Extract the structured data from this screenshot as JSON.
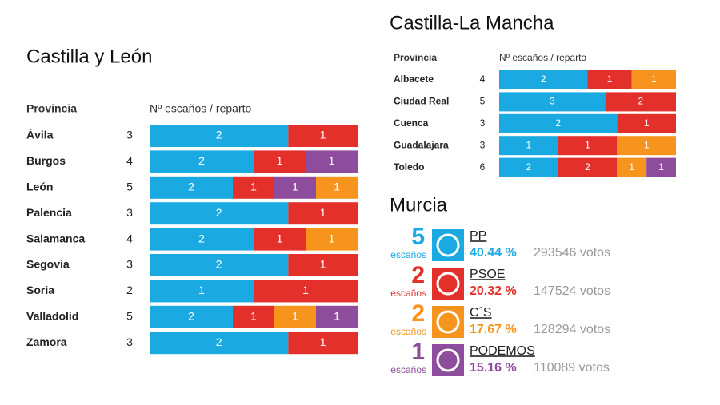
{
  "castilla_leon": {
    "title": "Castilla y León",
    "header": [
      "Provincia",
      "Nº escaños / reparto"
    ],
    "rows": [
      {
        "province": "Ávila",
        "seats": 3,
        "segments": [
          {
            "value": 2,
            "color": "#1aa9e0"
          },
          {
            "value": 1,
            "color": "#e4302a"
          }
        ]
      },
      {
        "province": "Burgos",
        "seats": 4,
        "segments": [
          {
            "value": 2,
            "color": "#1aa9e0"
          },
          {
            "value": 1,
            "color": "#e4302a"
          },
          {
            "value": 1,
            "color": "#8e4d9c"
          }
        ]
      },
      {
        "province": "León",
        "seats": 5,
        "segments": [
          {
            "value": 2,
            "color": "#1aa9e0"
          },
          {
            "value": 1,
            "color": "#e4302a"
          },
          {
            "value": 1,
            "color": "#8e4d9c"
          },
          {
            "value": 1,
            "color": "#f7941d"
          }
        ]
      },
      {
        "province": "Palencia",
        "seats": 3,
        "segments": [
          {
            "value": 2,
            "color": "#1aa9e0"
          },
          {
            "value": 1,
            "color": "#e4302a"
          }
        ]
      },
      {
        "province": "Salamanca",
        "seats": 4,
        "segments": [
          {
            "value": 2,
            "color": "#1aa9e0"
          },
          {
            "value": 1,
            "color": "#e4302a"
          },
          {
            "value": 1,
            "color": "#f7941d"
          }
        ]
      },
      {
        "province": "Segovia",
        "seats": 3,
        "segments": [
          {
            "value": 2,
            "color": "#1aa9e0"
          },
          {
            "value": 1,
            "color": "#e4302a"
          }
        ]
      },
      {
        "province": "Soria",
        "seats": 2,
        "segments": [
          {
            "value": 1,
            "color": "#1aa9e0"
          },
          {
            "value": 1,
            "color": "#e4302a"
          }
        ]
      },
      {
        "province": "Valladolid",
        "seats": 5,
        "segments": [
          {
            "value": 2,
            "color": "#1aa9e0"
          },
          {
            "value": 1,
            "color": "#e4302a"
          },
          {
            "value": 1,
            "color": "#f7941d"
          },
          {
            "value": 1,
            "color": "#8e4d9c"
          }
        ]
      },
      {
        "province": "Zamora",
        "seats": 3,
        "segments": [
          {
            "value": 2,
            "color": "#1aa9e0"
          },
          {
            "value": 1,
            "color": "#e4302a"
          }
        ]
      }
    ]
  },
  "castilla_la_mancha": {
    "title": "Castilla-La Mancha",
    "header": [
      "Provincia",
      "Nº escaños / reparto"
    ],
    "rows": [
      {
        "province": "Albacete",
        "seats": 4,
        "segments": [
          {
            "value": 2,
            "color": "#1aa9e0"
          },
          {
            "value": 1,
            "color": "#e4302a"
          },
          {
            "value": 1,
            "color": "#f7941d"
          }
        ]
      },
      {
        "province": "Ciudad Real",
        "seats": 5,
        "segments": [
          {
            "value": 3,
            "color": "#1aa9e0"
          },
          {
            "value": 2,
            "color": "#e4302a"
          }
        ]
      },
      {
        "province": "Cuenca",
        "seats": 3,
        "segments": [
          {
            "value": 2,
            "color": "#1aa9e0"
          },
          {
            "value": 1,
            "color": "#e4302a"
          }
        ]
      },
      {
        "province": "Guadalajara",
        "seats": 3,
        "segments": [
          {
            "value": 1,
            "color": "#1aa9e0"
          },
          {
            "value": 1,
            "color": "#e4302a"
          },
          {
            "value": 1,
            "color": "#f7941d"
          }
        ]
      },
      {
        "province": "Toledo",
        "seats": 6,
        "segments": [
          {
            "value": 2,
            "color": "#1aa9e0"
          },
          {
            "value": 2,
            "color": "#e4302a"
          },
          {
            "value": 1,
            "color": "#f7941d"
          },
          {
            "value": 1,
            "color": "#8e4d9c"
          }
        ]
      }
    ]
  },
  "murcia": {
    "title": "Murcia",
    "seats_label": "escaños",
    "items": [
      {
        "party": "PP",
        "seats": 5,
        "pct": "40.44 %",
        "votes": "293546 votos",
        "color": "#1aa9e0"
      },
      {
        "party": "PSOE",
        "seats": 2,
        "pct": "20.32 %",
        "votes": "147524 votos",
        "color": "#e4302a"
      },
      {
        "party": "C´S",
        "seats": 2,
        "pct": "17.67 %",
        "votes": "128294 votos",
        "color": "#f7941d"
      },
      {
        "party": "PODEMOS",
        "seats": 1,
        "pct": "15.16 %",
        "votes": "110089 votos",
        "color": "#8e4d9c"
      }
    ]
  }
}
